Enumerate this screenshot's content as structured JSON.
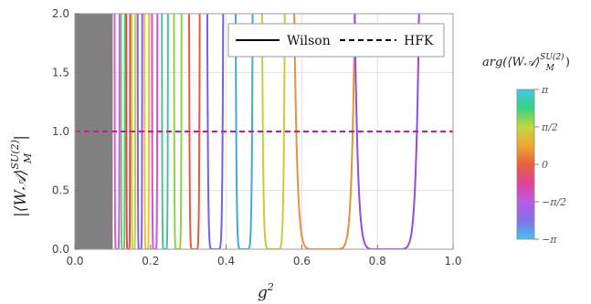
{
  "chart_data": {
    "type": "line",
    "xlabel": "g",
    "xlabel_sup": "2",
    "ylabel": "|⟨W𝒜⟩",
    "ylabel_sup": "SU(2)",
    "ylabel_sub": "M",
    "ylabel_end": "|",
    "xlim": [
      0.0,
      1.0
    ],
    "ylim": [
      0.0,
      2.0
    ],
    "xticks": [
      "0.0",
      "0.2",
      "0.4",
      "0.6",
      "0.8",
      "1.0"
    ],
    "yticks": [
      "0.0",
      "0.5",
      "1.0",
      "1.5",
      "2.0"
    ],
    "grid": true,
    "legend": {
      "placement": "top-right",
      "entries": [
        {
          "label": "Wilson",
          "style": "solid"
        },
        {
          "label": "HFK",
          "style": "dashed"
        }
      ]
    },
    "shaded_region": {
      "x": [
        0.0,
        0.1
      ],
      "color": "#808080"
    },
    "hfk_line": {
      "y": 1.0,
      "color": "#c81e8c"
    },
    "wilson_dips": [
      {
        "left": 0.105,
        "right": 0.118,
        "color": "#d35bd8"
      },
      {
        "left": 0.122,
        "right": 0.132,
        "color": "#5fcf7a"
      },
      {
        "left": 0.136,
        "right": 0.146,
        "color": "#e04a4a"
      },
      {
        "left": 0.15,
        "right": 0.16,
        "color": "#b6d63a"
      },
      {
        "left": 0.166,
        "right": 0.178,
        "color": "#8a5cf0"
      },
      {
        "left": 0.184,
        "right": 0.196,
        "color": "#e5c33b"
      },
      {
        "left": 0.204,
        "right": 0.218,
        "color": "#d94fd4"
      },
      {
        "left": 0.23,
        "right": 0.246,
        "color": "#4fbf9a"
      },
      {
        "left": 0.262,
        "right": 0.282,
        "color": "#8fd04a"
      },
      {
        "left": 0.302,
        "right": 0.33,
        "color": "#e65a3d"
      },
      {
        "left": 0.35,
        "right": 0.392,
        "color": "#7a5cf0"
      },
      {
        "left": 0.425,
        "right": 0.47,
        "color": "#45a8d6"
      },
      {
        "left": 0.495,
        "right": 0.555,
        "color": "#c4cf35"
      },
      {
        "left": 0.58,
        "right": 0.74,
        "color": "#e8913a"
      },
      {
        "left": 0.74,
        "right": 0.91,
        "color": "#8e4fe0"
      }
    ],
    "colorbar": {
      "title": "arg(⟨W𝒜⟩",
      "title_sup": "SU(2)",
      "title_sub": "M",
      "title_end": ")",
      "labels": [
        "π",
        "π/2",
        "0",
        "−π/2",
        "−π"
      ],
      "stops": [
        "#41c6e8",
        "#3ad47e",
        "#c3d83a",
        "#f0a632",
        "#e8613a",
        "#e0439a",
        "#b85be6",
        "#7f72e8",
        "#41c6e8"
      ]
    }
  }
}
